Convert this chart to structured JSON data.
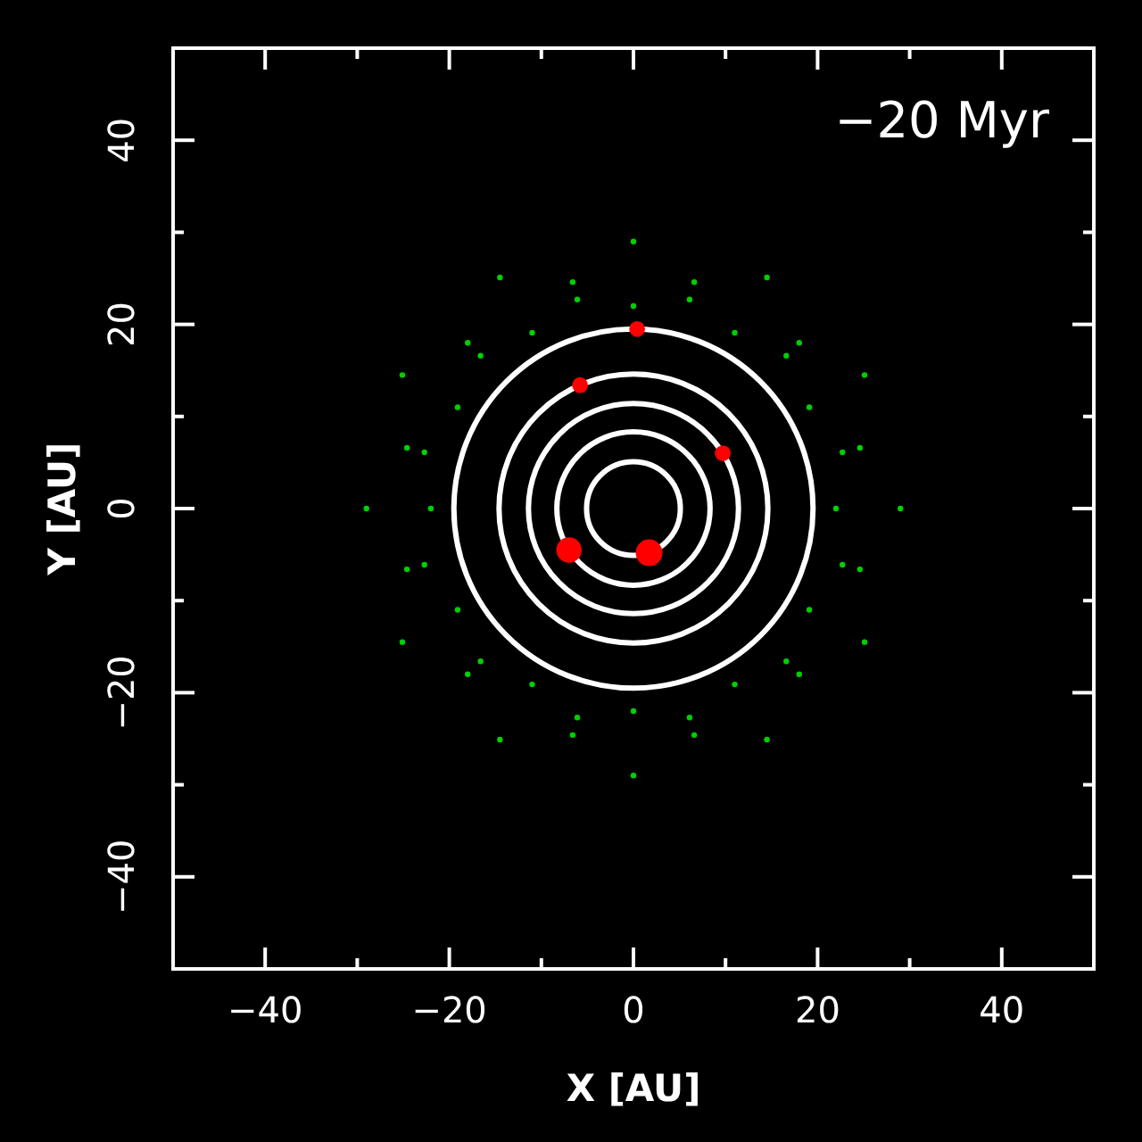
{
  "chart_data": {
    "type": "scatter",
    "xlabel": "X [AU]",
    "ylabel": "Y [AU]",
    "annotations": [
      "−20 Myr"
    ],
    "xlim": [
      -50,
      50
    ],
    "ylim": [
      -50,
      50
    ],
    "xticks": [
      -40,
      {
        "value": -30,
        "label": null
      },
      -20,
      {
        "value": -10,
        "label": null
      },
      0,
      {
        "value": 10,
        "label": null
      },
      20,
      {
        "value": 30,
        "label": null
      },
      40
    ],
    "yticks": [
      -40,
      {
        "value": -30,
        "label": null
      },
      -20,
      {
        "value": -10,
        "label": null
      },
      0,
      {
        "value": 10,
        "label": null
      },
      20,
      {
        "value": 30,
        "label": null
      },
      40
    ],
    "series": [
      {
        "type": "scatter",
        "color": "#00d000",
        "x": [
          22,
          19.1,
          11,
          0,
          -11,
          -19.1,
          -22,
          -19.1,
          -11,
          0,
          11,
          19.1,
          29,
          25.1,
          14.5,
          0,
          -14.5,
          -25.1,
          -29,
          -25.1,
          -14.5,
          0,
          14.5,
          25.1,
          24.6,
          18,
          6.6,
          -6.6,
          -18,
          -24.6,
          -24.6,
          -18,
          -6.6,
          6.6,
          18,
          24.6,
          22.7,
          16.6,
          6.1,
          -6.1,
          -16.6,
          -22.7,
          -22.7,
          -16.6,
          -6.1,
          6.1,
          16.6,
          22.7
        ],
        "values": [
          0,
          11,
          19.1,
          22,
          19.1,
          11,
          0,
          -11,
          -19.1,
          -22,
          -19.1,
          -11,
          0,
          14.5,
          25.1,
          29,
          25.1,
          14.5,
          0,
          -14.5,
          -25.1,
          -29,
          -25.1,
          -14.5,
          6.6,
          18,
          24.6,
          24.6,
          18,
          6.6,
          -6.6,
          -18,
          -24.6,
          -24.6,
          -18,
          -6.6,
          6.1,
          16.6,
          22.7,
          22.7,
          16.6,
          6.1,
          -6.1,
          -16.6,
          -22.7,
          -22.7,
          -16.6,
          -6.1
        ]
      },
      {
        "type": "bubble",
        "color": "#ff0000",
        "x": [
          1.7,
          -7,
          9.7,
          -5.8,
          0.4
        ],
        "values": [
          -4.8,
          -4.5,
          6,
          13.4,
          19.5
        ],
        "sizes": [
          1,
          0.9,
          0.35,
          0.35,
          0.35
        ]
      }
    ]
  }
}
